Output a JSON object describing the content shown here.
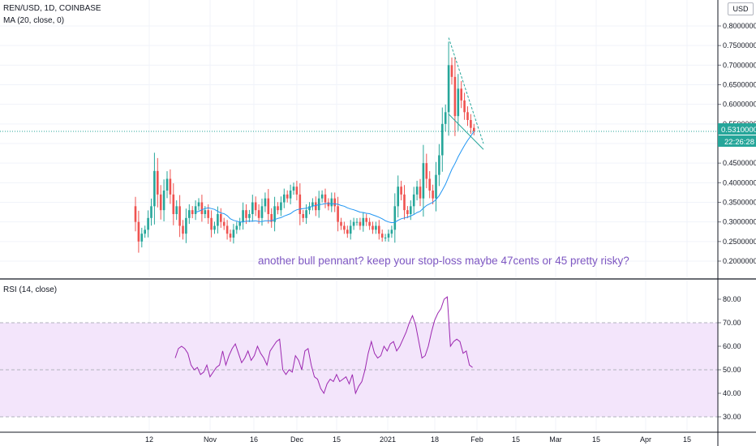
{
  "header": {
    "symbol_line": "REN/USD, 1D, COINBASE",
    "ma_line": "MA (20, close, 0)",
    "rsi_line": "RSI (14, close)",
    "currency": "USD"
  },
  "annotation": "another bull pennant? keep your stop-loss maybe 47cents or 45 pretty risky?",
  "colors": {
    "up": "#26a69a",
    "down": "#ef5350",
    "ma": "#2196f3",
    "rsi": "#9c27b0",
    "rsi_band": "#f3e5fb",
    "trendline": "#26a69a",
    "price_tag": "#26a69a"
  },
  "chart_data": [
    {
      "type": "candlestick",
      "title": "REN/USD, 1D, COINBASE",
      "ylim": [
        0.18,
        0.82
      ],
      "y_ticks": [
        0.2,
        0.25,
        0.3,
        0.35,
        0.4,
        0.45,
        0.5,
        0.55,
        0.6,
        0.65,
        0.7,
        0.75,
        0.8
      ],
      "y_tick_labels": [
        "0.20000000",
        "0.25000000",
        "0.30000000",
        "0.35000000",
        "0.40000000",
        "0.45000000",
        "0.50000000",
        "0.55000000",
        "0.60000000",
        "0.65000000",
        "0.70000000",
        "0.75000000",
        "0.80000000"
      ],
      "x_tick_labels": [
        "12",
        "Nov",
        "16",
        "Dec",
        "15",
        "2021",
        "18",
        "Feb",
        "15",
        "Mar",
        "15",
        "Apr",
        "15"
      ],
      "last_price": "0.53100000",
      "countdown": "22:26:28",
      "series": [
        {
          "name": "REN/USD",
          "close": [
            0.3,
            0.25,
            0.27,
            0.28,
            0.31,
            0.34,
            0.43,
            0.37,
            0.33,
            0.38,
            0.41,
            0.37,
            0.32,
            0.34,
            0.29,
            0.27,
            0.31,
            0.33,
            0.32,
            0.34,
            0.35,
            0.32,
            0.33,
            0.31,
            0.28,
            0.29,
            0.32,
            0.3,
            0.29,
            0.27,
            0.26,
            0.28,
            0.29,
            0.3,
            0.33,
            0.31,
            0.32,
            0.35,
            0.33,
            0.31,
            0.34,
            0.36,
            0.32,
            0.3,
            0.34,
            0.33,
            0.35,
            0.37,
            0.36,
            0.38,
            0.39,
            0.37,
            0.32,
            0.31,
            0.33,
            0.34,
            0.35,
            0.33,
            0.36,
            0.37,
            0.35,
            0.34,
            0.36,
            0.34,
            0.3,
            0.29,
            0.28,
            0.27,
            0.29,
            0.3,
            0.3,
            0.29,
            0.31,
            0.3,
            0.29,
            0.28,
            0.29,
            0.27,
            0.26,
            0.26,
            0.27,
            0.28,
            0.34,
            0.39,
            0.37,
            0.33,
            0.32,
            0.34,
            0.37,
            0.39,
            0.36,
            0.45,
            0.41,
            0.38,
            0.36,
            0.42,
            0.47,
            0.55,
            0.58,
            0.7,
            0.67,
            0.57,
            0.64,
            0.61,
            0.58,
            0.56,
            0.54,
            0.531
          ]
        },
        {
          "name": "MA (20, close, 0)",
          "values": [
            null,
            null,
            null,
            null,
            null,
            null,
            null,
            null,
            null,
            null,
            null,
            null,
            null,
            null,
            null,
            null,
            null,
            null,
            null,
            0.325,
            0.327,
            0.331,
            0.334,
            0.336,
            0.334,
            0.332,
            0.327,
            0.323,
            0.321,
            0.316,
            0.308,
            0.304,
            0.302,
            0.3,
            0.3,
            0.302,
            0.302,
            0.302,
            0.303,
            0.301,
            0.301,
            0.303,
            0.303,
            0.303,
            0.306,
            0.309,
            0.311,
            0.315,
            0.318,
            0.321,
            0.327,
            0.331,
            0.333,
            0.334,
            0.335,
            0.337,
            0.34,
            0.342,
            0.344,
            0.345,
            0.347,
            0.347,
            0.346,
            0.346,
            0.345,
            0.342,
            0.34,
            0.336,
            0.333,
            0.331,
            0.328,
            0.325,
            0.324,
            0.322,
            0.321,
            0.318,
            0.315,
            0.312,
            0.308,
            0.303,
            0.3,
            0.298,
            0.299,
            0.304,
            0.308,
            0.31,
            0.312,
            0.315,
            0.319,
            0.324,
            0.327,
            0.335,
            0.342,
            0.346,
            0.35,
            0.357,
            0.367,
            0.381,
            0.396,
            0.415,
            0.434,
            0.449,
            0.466,
            0.481,
            0.495,
            0.508,
            0.519,
            0.531
          ]
        }
      ],
      "trendlines": [
        {
          "from": [
            99,
            0.77
          ],
          "to": [
            110,
            0.5
          ]
        },
        {
          "from": [
            99,
            0.575
          ],
          "to": [
            110,
            0.485
          ]
        }
      ]
    },
    {
      "type": "line",
      "title": "RSI (14, close)",
      "ylim": [
        26,
        85
      ],
      "y_ticks": [
        30,
        40,
        50,
        60,
        70,
        80
      ],
      "y_tick_labels": [
        "30.00",
        "40.00",
        "50.00",
        "60.00",
        "70.00",
        "80.00"
      ],
      "band": [
        30,
        70
      ],
      "midline": 50,
      "series": [
        {
          "name": "RSI",
          "values": [
            55,
            59,
            60,
            59,
            57,
            52,
            50,
            51,
            48,
            49,
            52,
            47,
            49,
            51,
            52,
            58,
            52,
            56,
            59,
            61,
            57,
            53,
            55,
            58,
            54,
            56,
            60,
            57,
            55,
            52,
            58,
            60,
            62,
            63,
            50,
            48,
            50,
            49,
            56,
            54,
            50,
            58,
            59,
            52,
            47,
            46,
            42,
            40,
            44,
            46,
            45,
            48,
            45,
            46,
            47,
            44,
            48,
            40,
            43,
            45,
            50,
            57,
            62,
            57,
            55,
            56,
            60,
            58,
            61,
            62,
            58,
            60,
            63,
            66,
            70,
            73,
            69,
            62,
            55,
            56,
            60,
            66,
            71,
            74,
            76,
            80,
            81,
            60,
            62,
            63,
            62,
            57,
            58,
            52,
            51
          ]
        }
      ]
    }
  ]
}
